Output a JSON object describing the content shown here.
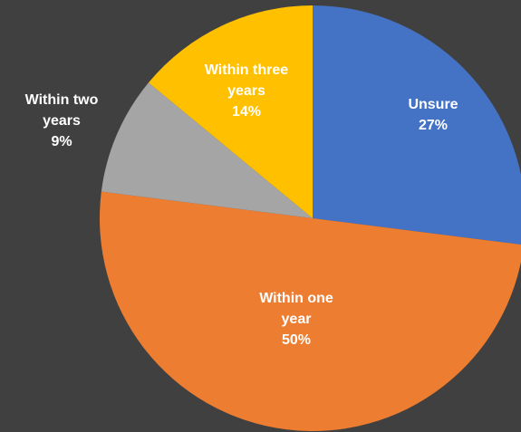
{
  "chart_data": {
    "type": "pie",
    "title": "",
    "slices": [
      {
        "label": "Unsure",
        "label_lines": [
          "Unsure"
        ],
        "value": 27,
        "value_label": "27%",
        "color": "#4472C4",
        "label_color": "#FFFFFF"
      },
      {
        "label": "Within one year",
        "label_lines": [
          "Within one",
          "year"
        ],
        "value": 50,
        "value_label": "50%",
        "color": "#ED7D31",
        "label_color": "#FFFFFF"
      },
      {
        "label": "Within two years",
        "label_lines": [
          "Within two",
          "years"
        ],
        "value": 9,
        "value_label": "9%",
        "color": "#A5A5A5",
        "label_color": "#FFFFFF"
      },
      {
        "label": "Within three years",
        "label_lines": [
          "Within three",
          "years"
        ],
        "value": 14,
        "value_label": "14%",
        "color": "#FFC000",
        "label_color": "#FFFFFF"
      }
    ],
    "start_angle_deg": 0,
    "direction": "clockwise",
    "legend": "none",
    "background": "#404040"
  }
}
